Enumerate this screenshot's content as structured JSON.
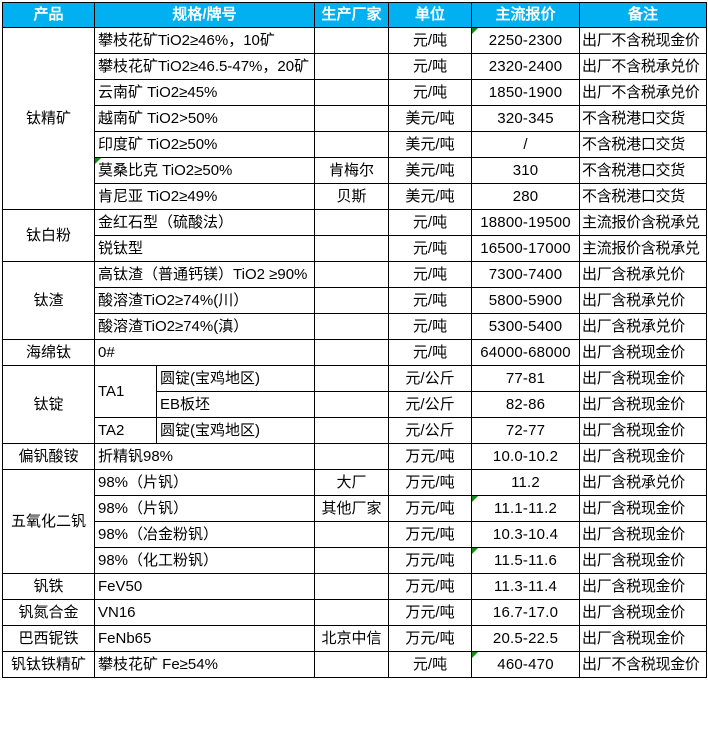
{
  "colors": {
    "header_bg": "#00B0F0",
    "header_text": "#FFFFFF",
    "border": "#000000",
    "flag_green": "#108C10"
  },
  "header": {
    "columns": [
      "产品",
      "规格/牌号",
      "生产厂家",
      "单位",
      "主流报价",
      "备注"
    ]
  },
  "rows": [
    {
      "cells": [
        {
          "col": "product",
          "text": "钛精矿",
          "rowspan": 7
        },
        {
          "col": "spec",
          "text": "攀枝花矿TiO2≥46%，10矿",
          "colspan": 2
        },
        {
          "col": "vendor",
          "text": ""
        },
        {
          "col": "unit",
          "text": "元/吨"
        },
        {
          "col": "price",
          "text": "2250-2300",
          "flag": true
        },
        {
          "col": "note",
          "text": "出厂不含税现金价"
        }
      ]
    },
    {
      "cells": [
        {
          "col": "spec",
          "text": "攀枝花矿TiO2≥46.5-47%，20矿",
          "colspan": 2
        },
        {
          "col": "vendor",
          "text": ""
        },
        {
          "col": "unit",
          "text": "元/吨"
        },
        {
          "col": "price",
          "text": "2320-2400"
        },
        {
          "col": "note",
          "text": "出厂不含税承兑价"
        }
      ]
    },
    {
      "cells": [
        {
          "col": "spec",
          "text": "云南矿 TiO2≥45%",
          "colspan": 2
        },
        {
          "col": "vendor",
          "text": ""
        },
        {
          "col": "unit",
          "text": "元/吨"
        },
        {
          "col": "price",
          "text": "1850-1900"
        },
        {
          "col": "note",
          "text": "出厂不含税承兑价"
        }
      ]
    },
    {
      "cells": [
        {
          "col": "spec",
          "text": "越南矿 TiO2>50%",
          "colspan": 2
        },
        {
          "col": "vendor",
          "text": ""
        },
        {
          "col": "unit",
          "text": "美元/吨"
        },
        {
          "col": "price",
          "text": "320-345"
        },
        {
          "col": "note",
          "text": "不含税港口交货"
        }
      ]
    },
    {
      "cells": [
        {
          "col": "spec",
          "text": "印度矿 TiO2≥50%",
          "colspan": 2
        },
        {
          "col": "vendor",
          "text": ""
        },
        {
          "col": "unit",
          "text": "美元/吨"
        },
        {
          "col": "price",
          "text": "/"
        },
        {
          "col": "note",
          "text": "不含税港口交货"
        }
      ]
    },
    {
      "cells": [
        {
          "col": "spec",
          "text": "莫桑比克 TiO2≥50%",
          "colspan": 2,
          "flag": true
        },
        {
          "col": "vendor",
          "text": "肯梅尔"
        },
        {
          "col": "unit",
          "text": "美元/吨"
        },
        {
          "col": "price",
          "text": "310"
        },
        {
          "col": "note",
          "text": "不含税港口交货"
        }
      ]
    },
    {
      "cells": [
        {
          "col": "spec",
          "text": "肯尼亚 TiO2≥49%",
          "colspan": 2
        },
        {
          "col": "vendor",
          "text": "贝斯"
        },
        {
          "col": "unit",
          "text": "美元/吨"
        },
        {
          "col": "price",
          "text": "280"
        },
        {
          "col": "note",
          "text": "不含税港口交货"
        }
      ]
    },
    {
      "cells": [
        {
          "col": "product",
          "text": "钛白粉",
          "rowspan": 2
        },
        {
          "col": "spec",
          "text": "金红石型（硫酸法）",
          "colspan": 2
        },
        {
          "col": "vendor",
          "text": ""
        },
        {
          "col": "unit",
          "text": "元/吨"
        },
        {
          "col": "price",
          "text": "18800-19500"
        },
        {
          "col": "note",
          "text": "主流报价含税承兑"
        }
      ]
    },
    {
      "cells": [
        {
          "col": "spec",
          "text": "锐钛型",
          "colspan": 2
        },
        {
          "col": "vendor",
          "text": ""
        },
        {
          "col": "unit",
          "text": "元/吨"
        },
        {
          "col": "price",
          "text": "16500-17000"
        },
        {
          "col": "note",
          "text": "主流报价含税承兑"
        }
      ]
    },
    {
      "cells": [
        {
          "col": "product",
          "text": "钛渣",
          "rowspan": 3
        },
        {
          "col": "spec",
          "text": "高钛渣（普通钙镁）TiO2 ≥90%",
          "colspan": 2
        },
        {
          "col": "vendor",
          "text": ""
        },
        {
          "col": "unit",
          "text": "元/吨"
        },
        {
          "col": "price",
          "text": "7300-7400"
        },
        {
          "col": "note",
          "text": "出厂含税承兑价"
        }
      ]
    },
    {
      "cells": [
        {
          "col": "spec",
          "text": "酸溶渣TiO2≥74%(川）",
          "colspan": 2
        },
        {
          "col": "vendor",
          "text": ""
        },
        {
          "col": "unit",
          "text": "元/吨"
        },
        {
          "col": "price",
          "text": "5800-5900"
        },
        {
          "col": "note",
          "text": "出厂含税承兑价"
        }
      ]
    },
    {
      "cells": [
        {
          "col": "spec",
          "text": "酸溶渣TiO2≥74%(滇）",
          "colspan": 2
        },
        {
          "col": "vendor",
          "text": ""
        },
        {
          "col": "unit",
          "text": "元/吨"
        },
        {
          "col": "price",
          "text": "5300-5400"
        },
        {
          "col": "note",
          "text": "出厂含税承兑价"
        }
      ]
    },
    {
      "cells": [
        {
          "col": "product",
          "text": "海绵钛"
        },
        {
          "col": "spec",
          "text": "0#",
          "colspan": 2
        },
        {
          "col": "vendor",
          "text": ""
        },
        {
          "col": "unit",
          "text": "元/吨"
        },
        {
          "col": "price",
          "text": "64000-68000"
        },
        {
          "col": "note",
          "text": "出厂含税现金价"
        }
      ]
    },
    {
      "cells": [
        {
          "col": "product",
          "text": "钛锭",
          "rowspan": 3
        },
        {
          "col": "spec",
          "text": "TA1",
          "rowspan": 2
        },
        {
          "col": "spec_sub",
          "text": "圆锭(宝鸡地区)"
        },
        {
          "col": "vendor",
          "text": ""
        },
        {
          "col": "unit",
          "text": "元/公斤"
        },
        {
          "col": "price",
          "text": "77-81"
        },
        {
          "col": "note",
          "text": "出厂含税现金价"
        }
      ]
    },
    {
      "cells": [
        {
          "col": "spec_sub",
          "text": "EB板坯"
        },
        {
          "col": "vendor",
          "text": ""
        },
        {
          "col": "unit",
          "text": "元/公斤"
        },
        {
          "col": "price",
          "text": "82-86"
        },
        {
          "col": "note",
          "text": "出厂含税现金价"
        }
      ]
    },
    {
      "cells": [
        {
          "col": "spec",
          "text": "TA2"
        },
        {
          "col": "spec_sub",
          "text": "圆锭(宝鸡地区)"
        },
        {
          "col": "vendor",
          "text": ""
        },
        {
          "col": "unit",
          "text": "元/公斤"
        },
        {
          "col": "price",
          "text": "72-77"
        },
        {
          "col": "note",
          "text": "出厂含税现金价"
        }
      ]
    },
    {
      "cells": [
        {
          "col": "product",
          "text": "偏钒酸铵"
        },
        {
          "col": "spec",
          "text": "折精钒98%",
          "colspan": 2
        },
        {
          "col": "vendor",
          "text": ""
        },
        {
          "col": "unit",
          "text": "万元/吨"
        },
        {
          "col": "price",
          "text": "10.0-10.2"
        },
        {
          "col": "note",
          "text": "出厂含税现金价"
        }
      ]
    },
    {
      "cells": [
        {
          "col": "product",
          "text": "五氧化二钒",
          "rowspan": 4
        },
        {
          "col": "spec",
          "text": "98%（片钒）",
          "colspan": 2
        },
        {
          "col": "vendor",
          "text": "大厂"
        },
        {
          "col": "unit",
          "text": "万元/吨"
        },
        {
          "col": "price",
          "text": "11.2"
        },
        {
          "col": "note",
          "text": "出厂含税承兑价"
        }
      ]
    },
    {
      "cells": [
        {
          "col": "spec",
          "text": "98%（片钒）",
          "colspan": 2
        },
        {
          "col": "vendor",
          "text": "其他厂家"
        },
        {
          "col": "unit",
          "text": "万元/吨"
        },
        {
          "col": "price",
          "text": "11.1-11.2",
          "flag": true
        },
        {
          "col": "note",
          "text": "出厂含税现金价"
        }
      ]
    },
    {
      "cells": [
        {
          "col": "spec",
          "text": "98%（冶金粉钒）",
          "colspan": 2
        },
        {
          "col": "vendor",
          "text": ""
        },
        {
          "col": "unit",
          "text": "万元/吨"
        },
        {
          "col": "price",
          "text": "10.3-10.4"
        },
        {
          "col": "note",
          "text": "出厂含税现金价"
        }
      ]
    },
    {
      "cells": [
        {
          "col": "spec",
          "text": "98%（化工粉钒）",
          "colspan": 2
        },
        {
          "col": "vendor",
          "text": ""
        },
        {
          "col": "unit",
          "text": "万元/吨"
        },
        {
          "col": "price",
          "text": "11.5-11.6",
          "flag": true
        },
        {
          "col": "note",
          "text": "出厂含税现金价"
        }
      ]
    },
    {
      "cells": [
        {
          "col": "product",
          "text": "钒铁"
        },
        {
          "col": "spec",
          "text": "FeV50",
          "colspan": 2
        },
        {
          "col": "vendor",
          "text": ""
        },
        {
          "col": "unit",
          "text": "万元/吨"
        },
        {
          "col": "price",
          "text": "11.3-11.4"
        },
        {
          "col": "note",
          "text": "出厂含税现金价"
        }
      ]
    },
    {
      "cells": [
        {
          "col": "product",
          "text": "钒氮合金"
        },
        {
          "col": "spec",
          "text": "VN16",
          "colspan": 2
        },
        {
          "col": "vendor",
          "text": ""
        },
        {
          "col": "unit",
          "text": "万元/吨"
        },
        {
          "col": "price",
          "text": "16.7-17.0"
        },
        {
          "col": "note",
          "text": "出厂含税现金价"
        }
      ]
    },
    {
      "cells": [
        {
          "col": "product",
          "text": "巴西铌铁"
        },
        {
          "col": "spec",
          "text": "FeNb65",
          "colspan": 2
        },
        {
          "col": "vendor",
          "text": "北京中信"
        },
        {
          "col": "unit",
          "text": "万元/吨"
        },
        {
          "col": "price",
          "text": "20.5-22.5"
        },
        {
          "col": "note",
          "text": "出厂含税现金价"
        }
      ]
    },
    {
      "cells": [
        {
          "col": "product",
          "text": "钒钛铁精矿"
        },
        {
          "col": "spec",
          "text": "攀枝花矿 Fe≥54%",
          "colspan": 2
        },
        {
          "col": "vendor",
          "text": ""
        },
        {
          "col": "unit",
          "text": "元/吨"
        },
        {
          "col": "price",
          "text": "460-470",
          "flag": true
        },
        {
          "col": "note",
          "text": "出厂不含税现金价"
        }
      ]
    }
  ]
}
